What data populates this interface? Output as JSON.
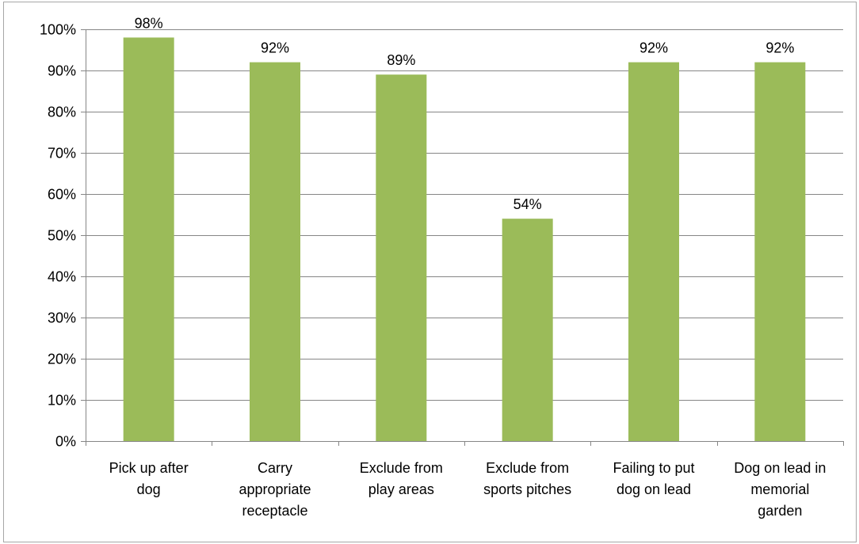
{
  "chart_data": {
    "type": "bar",
    "categories": [
      "Pick up after dog",
      "Carry appropriate receptacle",
      "Exclude from play areas",
      "Exclude from sports pitches",
      "Failing to put dog on lead",
      "Dog on lead in memorial garden"
    ],
    "category_lines": [
      [
        "Pick up after",
        "dog"
      ],
      [
        "Carry",
        "appropriate",
        "receptacle"
      ],
      [
        "Exclude from",
        "play areas"
      ],
      [
        "Exclude from",
        "sports pitches"
      ],
      [
        "Failing to put",
        "dog on lead"
      ],
      [
        "Dog on lead in",
        "memorial",
        "garden"
      ]
    ],
    "values": [
      98,
      92,
      89,
      54,
      92,
      92
    ],
    "data_labels": [
      "98%",
      "92%",
      "89%",
      "54%",
      "92%",
      "92%"
    ],
    "y_ticks": [
      "0%",
      "10%",
      "20%",
      "30%",
      "40%",
      "50%",
      "60%",
      "70%",
      "80%",
      "90%",
      "100%"
    ],
    "ylim": [
      0,
      100
    ],
    "grid": true,
    "legend": "none",
    "colors": {
      "bar": "#9bbb59",
      "grid": "#868686",
      "axis": "#868686",
      "frame": "#a6a6a6"
    }
  }
}
